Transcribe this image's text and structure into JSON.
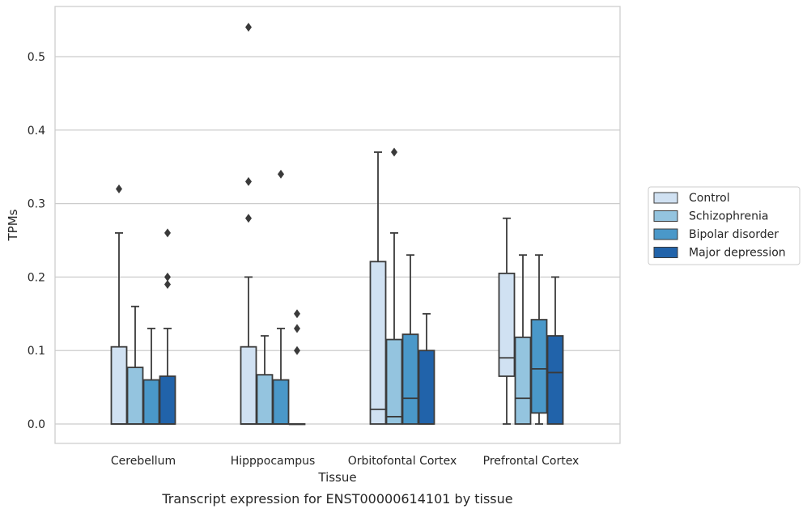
{
  "chart_data": {
    "type": "box",
    "title": "",
    "caption": "Transcript expression for ENST00000614101 by tissue",
    "xlabel": "Tissue",
    "ylabel": "TPMs",
    "ylim": [
      -0.026,
      0.57
    ],
    "yticks": [
      0.0,
      0.1,
      0.2,
      0.3,
      0.4,
      0.5
    ],
    "ytick_labels": [
      "0.0",
      "0.1",
      "0.2",
      "0.3",
      "0.4",
      "0.5"
    ],
    "grid": "horizontal",
    "legend_position": "right",
    "categories": [
      "Cerebellum",
      "Hipppocampus",
      "Orbitofontal Cortex",
      "Prefrontal Cortex"
    ],
    "series": [
      {
        "name": "Control",
        "color": "#d0e1f2",
        "boxes": [
          {
            "whisker_low": 0.0,
            "q1": 0.0,
            "median": 0.0,
            "q3": 0.105,
            "whisker_high": 0.26,
            "outliers": [
              0.32
            ]
          },
          {
            "whisker_low": 0.0,
            "q1": 0.0,
            "median": 0.0,
            "q3": 0.105,
            "whisker_high": 0.2,
            "outliers": [
              0.28,
              0.33,
              0.54
            ]
          },
          {
            "whisker_low": 0.0,
            "q1": 0.0,
            "median": 0.02,
            "q3": 0.221,
            "whisker_high": 0.37,
            "outliers": []
          },
          {
            "whisker_low": 0.0,
            "q1": 0.065,
            "median": 0.09,
            "q3": 0.205,
            "whisker_high": 0.28,
            "outliers": []
          }
        ]
      },
      {
        "name": "Schizophrenia",
        "color": "#94c4df",
        "boxes": [
          {
            "whisker_low": 0.0,
            "q1": 0.0,
            "median": 0.0,
            "q3": 0.077,
            "whisker_high": 0.16,
            "outliers": []
          },
          {
            "whisker_low": 0.0,
            "q1": 0.0,
            "median": 0.0,
            "q3": 0.067,
            "whisker_high": 0.12,
            "outliers": []
          },
          {
            "whisker_low": 0.0,
            "q1": 0.0,
            "median": 0.01,
            "q3": 0.115,
            "whisker_high": 0.26,
            "outliers": [
              0.37
            ]
          },
          {
            "whisker_low": 0.0,
            "q1": 0.0,
            "median": 0.035,
            "q3": 0.118,
            "whisker_high": 0.23,
            "outliers": []
          }
        ]
      },
      {
        "name": "Bipolar disorder",
        "color": "#4a98c9",
        "boxes": [
          {
            "whisker_low": 0.0,
            "q1": 0.0,
            "median": 0.0,
            "q3": 0.06,
            "whisker_high": 0.13,
            "outliers": []
          },
          {
            "whisker_low": 0.0,
            "q1": 0.0,
            "median": 0.0,
            "q3": 0.06,
            "whisker_high": 0.13,
            "outliers": [
              0.34
            ]
          },
          {
            "whisker_low": 0.0,
            "q1": 0.0,
            "median": 0.035,
            "q3": 0.122,
            "whisker_high": 0.23,
            "outliers": []
          },
          {
            "whisker_low": 0.0,
            "q1": 0.015,
            "median": 0.075,
            "q3": 0.142,
            "whisker_high": 0.23,
            "outliers": []
          }
        ]
      },
      {
        "name": "Major depression",
        "color": "#2163aa",
        "boxes": [
          {
            "whisker_low": 0.0,
            "q1": 0.0,
            "median": 0.0,
            "q3": 0.065,
            "whisker_high": 0.13,
            "outliers": [
              0.19,
              0.2,
              0.26
            ]
          },
          {
            "whisker_low": 0.0,
            "q1": 0.0,
            "median": 0.0,
            "q3": 0.0,
            "whisker_high": 0.0,
            "outliers": [
              0.1,
              0.13,
              0.15
            ]
          },
          {
            "whisker_low": 0.0,
            "q1": 0.0,
            "median": 0.0,
            "q3": 0.1,
            "whisker_high": 0.15,
            "outliers": []
          },
          {
            "whisker_low": 0.0,
            "q1": 0.0,
            "median": 0.07,
            "q3": 0.12,
            "whisker_high": 0.2,
            "outliers": []
          }
        ]
      }
    ]
  }
}
